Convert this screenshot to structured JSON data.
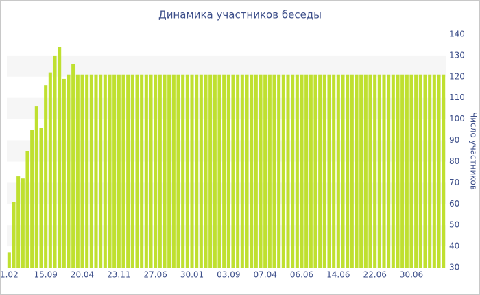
{
  "chart_data": {
    "type": "bar",
    "title": "Динамика участников беседы",
    "y_label": "Число участников",
    "categories": [
      "1.02",
      null,
      null,
      null,
      null,
      null,
      null,
      null,
      "15.09",
      null,
      null,
      null,
      null,
      null,
      null,
      null,
      "20.04",
      null,
      null,
      null,
      null,
      null,
      null,
      null,
      "23.11",
      null,
      null,
      null,
      null,
      null,
      null,
      null,
      "27.06",
      null,
      null,
      null,
      null,
      null,
      null,
      null,
      "30.01",
      null,
      null,
      null,
      null,
      null,
      null,
      null,
      "03.09",
      null,
      null,
      null,
      null,
      null,
      null,
      null,
      "07.04",
      null,
      null,
      null,
      null,
      null,
      null,
      null,
      "06.06",
      null,
      null,
      null,
      null,
      null,
      null,
      null,
      "14.06",
      null,
      null,
      null,
      null,
      null,
      null,
      null,
      "22.06",
      null,
      null,
      null,
      null,
      null,
      null,
      null,
      "30.06",
      null,
      null,
      null,
      null,
      null,
      null,
      null
    ],
    "values": [
      37,
      61,
      73,
      72,
      85,
      95,
      106,
      96,
      116,
      122,
      130,
      134,
      119,
      121,
      126,
      121,
      121,
      121,
      121,
      121,
      121,
      121,
      121,
      121,
      121,
      121,
      121,
      121,
      121,
      121,
      121,
      121,
      121,
      121,
      121,
      121,
      121,
      121,
      121,
      121,
      121,
      121,
      121,
      121,
      121,
      121,
      121,
      121,
      121,
      121,
      121,
      121,
      121,
      121,
      121,
      121,
      121,
      121,
      121,
      121,
      121,
      121,
      121,
      121,
      121,
      121,
      121,
      121,
      121,
      121,
      121,
      121,
      121,
      121,
      121,
      121,
      121,
      121,
      121,
      121,
      121,
      121,
      121,
      121,
      121,
      121,
      121,
      121,
      121,
      121,
      121,
      121,
      121,
      121,
      121,
      121
    ],
    "color": "#bfe030",
    "ylim": [
      30,
      140
    ],
    "yticks": [
      30,
      40,
      50,
      60,
      70,
      80,
      90,
      100,
      110,
      120,
      130,
      140
    ],
    "y_axis_side": "right",
    "grid": "bands"
  }
}
